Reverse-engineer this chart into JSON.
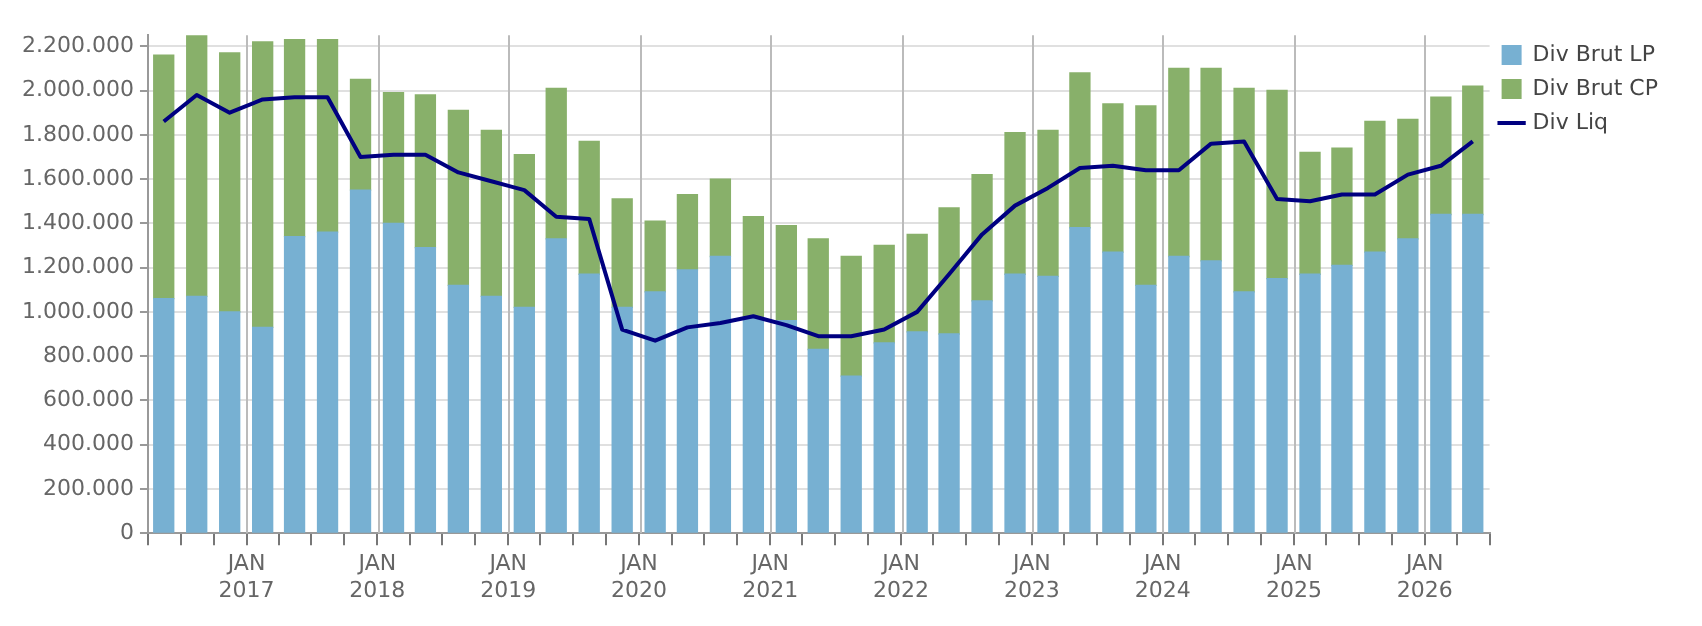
{
  "chart_data": {
    "type": "bar",
    "stacked": true,
    "x": [
      "2016-05-15",
      "2016-08-15",
      "2016-11-15",
      "2017-02-15",
      "2017-05-15",
      "2017-08-15",
      "2017-11-15",
      "2018-02-15",
      "2018-05-15",
      "2018-08-15",
      "2018-11-15",
      "2019-02-15",
      "2019-05-15",
      "2019-08-15",
      "2019-11-15",
      "2020-02-15",
      "2020-05-15",
      "2020-08-15",
      "2020-11-15",
      "2021-02-15",
      "2021-05-15",
      "2021-08-15",
      "2021-11-15",
      "2022-02-15",
      "2022-05-15",
      "2022-08-15",
      "2022-11-15",
      "2023-02-15",
      "2023-05-15",
      "2023-08-15",
      "2023-11-15",
      "2024-02-15",
      "2024-05-15",
      "2024-08-15",
      "2024-11-15",
      "2025-02-15",
      "2025-05-15",
      "2025-08-15",
      "2025-11-15",
      "2026-02-15",
      "2026-05-15"
    ],
    "series": [
      {
        "name": "Div Brut LP",
        "color": "#77b0d2",
        "values": [
          1060000,
          1070000,
          1000000,
          930000,
          1340000,
          1360000,
          1550000,
          1400000,
          1290000,
          1120000,
          1070000,
          1020000,
          1330000,
          1170000,
          1020000,
          1090000,
          1190000,
          1250000,
          970000,
          960000,
          830000,
          710000,
          860000,
          910000,
          900000,
          1050000,
          1170000,
          1160000,
          1380000,
          1270000,
          1120000,
          1250000,
          1230000,
          1090000,
          1150000,
          1170000,
          1210000,
          1270000,
          1330000,
          1440000,
          1440000
        ]
      },
      {
        "name": "Div Brut CP",
        "color": "#88b06a",
        "values": [
          1100000,
          1180000,
          1170000,
          1290000,
          890000,
          870000,
          500000,
          590000,
          690000,
          790000,
          750000,
          690000,
          680000,
          600000,
          490000,
          320000,
          340000,
          350000,
          460000,
          430000,
          500000,
          540000,
          440000,
          440000,
          570000,
          570000,
          640000,
          660000,
          700000,
          670000,
          810000,
          850000,
          870000,
          920000,
          850000,
          550000,
          530000,
          590000,
          540000,
          530000,
          580000
        ]
      },
      {
        "name": "Div Liq",
        "type": "line",
        "color": "#000080",
        "values": [
          1860000,
          1980000,
          1900000,
          1960000,
          1970000,
          1970000,
          1700000,
          1710000,
          1710000,
          1630000,
          1590000,
          1550000,
          1430000,
          1420000,
          920000,
          870000,
          930000,
          950000,
          980000,
          940000,
          890000,
          890000,
          920000,
          1000000,
          1170000,
          1350000,
          1480000,
          1560000,
          1650000,
          1660000,
          1640000,
          1640000,
          1760000,
          1770000,
          1510000,
          1500000,
          1530000,
          1530000,
          1620000,
          1660000,
          1770000
        ]
      }
    ],
    "xlim": [
      "2016-04-01",
      "2026-07-01"
    ],
    "xticks": [
      {
        "value": "2016-04-01",
        "label": null
      },
      {
        "value": "2016-07-01",
        "label": null
      },
      {
        "value": "2016-10-01",
        "label": null
      },
      {
        "value": "2017-01-01",
        "label": "JAN 2017"
      },
      {
        "value": "2017-04-01",
        "label": null
      },
      {
        "value": "2017-07-01",
        "label": null
      },
      {
        "value": "2017-10-01",
        "label": null
      },
      {
        "value": "2018-01-01",
        "label": "JAN 2018"
      },
      {
        "value": "2018-04-01",
        "label": null
      },
      {
        "value": "2018-07-01",
        "label": null
      },
      {
        "value": "2018-10-01",
        "label": null
      },
      {
        "value": "2019-01-01",
        "label": "JAN 2019"
      },
      {
        "value": "2019-04-01",
        "label": null
      },
      {
        "value": "2019-07-01",
        "label": null
      },
      {
        "value": "2019-10-01",
        "label": null
      },
      {
        "value": "2020-01-01",
        "label": "JAN 2020"
      },
      {
        "value": "2020-04-01",
        "label": null
      },
      {
        "value": "2020-07-01",
        "label": null
      },
      {
        "value": "2020-10-01",
        "label": null
      },
      {
        "value": "2021-01-01",
        "label": "JAN 2021"
      },
      {
        "value": "2021-04-01",
        "label": null
      },
      {
        "value": "2021-07-01",
        "label": null
      },
      {
        "value": "2021-10-01",
        "label": null
      },
      {
        "value": "2022-01-01",
        "label": "JAN 2022"
      },
      {
        "value": "2022-04-01",
        "label": null
      },
      {
        "value": "2022-07-01",
        "label": null
      },
      {
        "value": "2022-10-01",
        "label": null
      },
      {
        "value": "2023-01-01",
        "label": "JAN 2023"
      },
      {
        "value": "2023-04-01",
        "label": null
      },
      {
        "value": "2023-07-01",
        "label": null
      },
      {
        "value": "2023-10-01",
        "label": null
      },
      {
        "value": "2024-01-01",
        "label": "JAN 2024"
      },
      {
        "value": "2024-04-01",
        "label": null
      },
      {
        "value": "2024-07-01",
        "label": null
      },
      {
        "value": "2024-10-01",
        "label": null
      },
      {
        "value": "2025-01-01",
        "label": "JAN 2025"
      },
      {
        "value": "2025-04-01",
        "label": null
      },
      {
        "value": "2025-07-01",
        "label": null
      },
      {
        "value": "2025-10-01",
        "label": null
      },
      {
        "value": "2026-01-01",
        "label": "JAN 2026"
      },
      {
        "value": "2026-04-01",
        "label": null
      },
      {
        "value": "2026-07-01",
        "label": null
      }
    ],
    "ylim": [
      0,
      2250000
    ],
    "yticks": [
      0,
      {
        "value": 200000,
        "label": "200.000"
      },
      {
        "value": 400000,
        "label": "400.000"
      },
      {
        "value": 600000,
        "label": "600.000"
      },
      {
        "value": 800000,
        "label": "800.000"
      },
      {
        "value": 1000000,
        "label": "1.000.000"
      },
      {
        "value": 1200000,
        "label": "1.200.000"
      },
      {
        "value": 1400000,
        "label": "1.400.000"
      },
      {
        "value": 1600000,
        "label": "1.600.000"
      },
      {
        "value": 1800000,
        "label": "1.800.000"
      },
      {
        "value": 2000000,
        "label": "2.000.000"
      },
      {
        "value": 2200000,
        "label": "2.200.000"
      }
    ],
    "grid": true,
    "legend": "top right",
    "marker": "none"
  }
}
